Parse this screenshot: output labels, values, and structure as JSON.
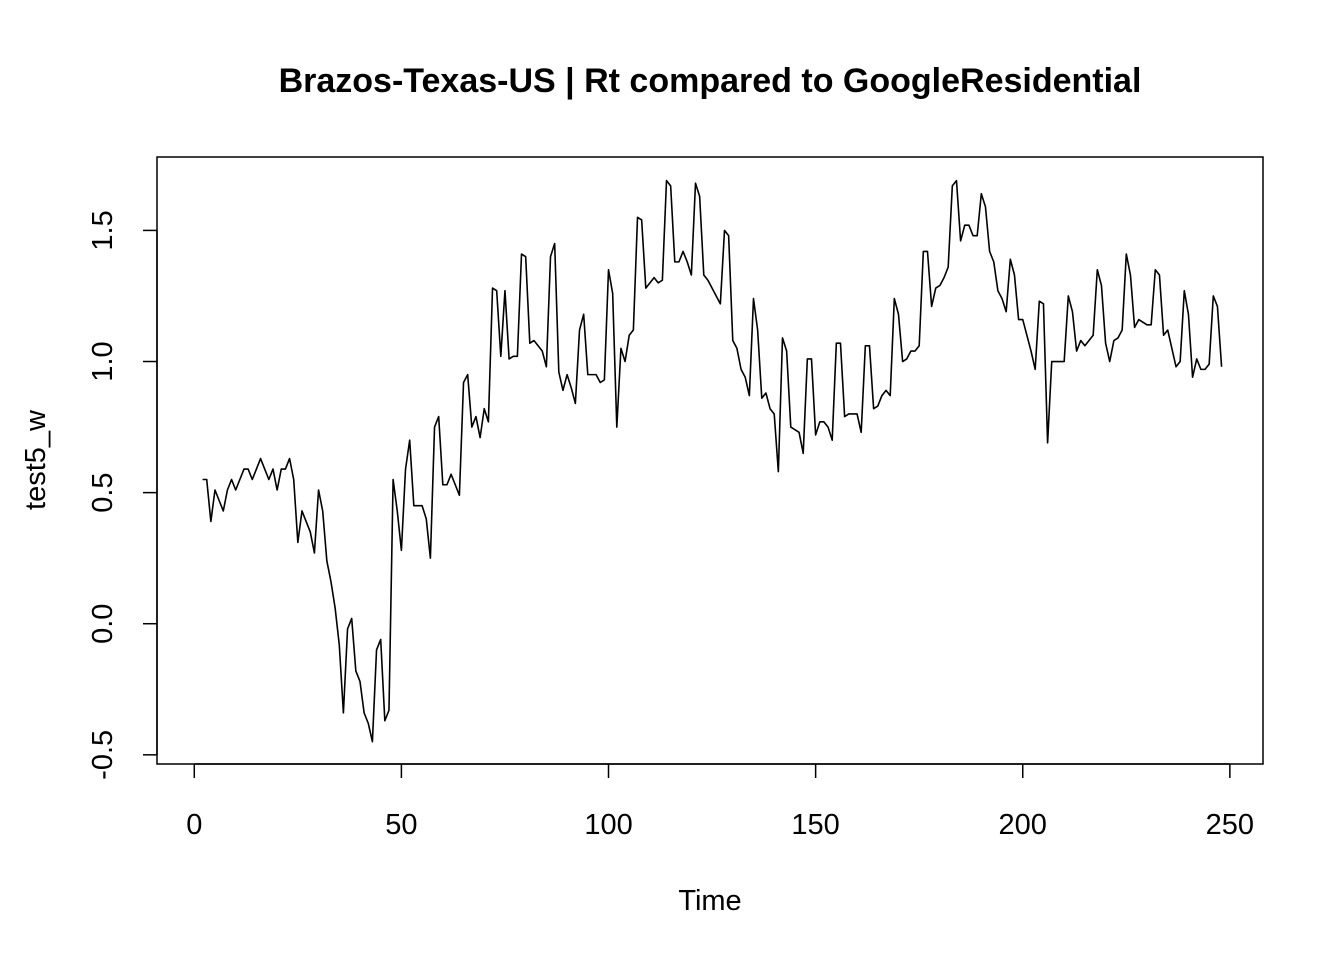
{
  "chart_data": {
    "type": "line",
    "title": "Brazos-Texas-US | Rt compared to GoogleResidential",
    "xlabel": "Time",
    "ylabel": "test5_w",
    "xlim": [
      -9,
      258
    ],
    "ylim": [
      -0.535,
      1.78
    ],
    "x_ticks": [
      0,
      50,
      100,
      150,
      200,
      250
    ],
    "y_ticks": [
      -0.5,
      0.0,
      0.5,
      1.0,
      1.5
    ],
    "x_tick_labels": [
      "0",
      "50",
      "100",
      "150",
      "200",
      "250"
    ],
    "y_tick_labels": [
      "-0.5",
      "0.0",
      "0.5",
      "1.0",
      "1.5"
    ],
    "grid": false,
    "legend": "none",
    "line_color": "#000000",
    "series": [
      {
        "x_start": 2,
        "values": [
          0.55,
          0.55,
          0.39,
          0.51,
          0.47,
          0.43,
          0.51,
          0.55,
          0.51,
          0.55,
          0.59,
          0.59,
          0.55,
          0.59,
          0.63,
          0.59,
          0.55,
          0.59,
          0.51,
          0.59,
          0.59,
          0.63,
          0.55,
          0.31,
          0.43,
          0.39,
          0.35,
          0.27,
          0.51,
          0.43,
          0.24,
          0.16,
          0.06,
          -0.08,
          -0.34,
          -0.02,
          0.02,
          -0.18,
          -0.22,
          -0.34,
          -0.38,
          -0.45,
          -0.1,
          -0.06,
          -0.37,
          -0.33,
          0.55,
          0.43,
          0.28,
          0.59,
          0.7,
          0.45,
          0.45,
          0.45,
          0.4,
          0.25,
          0.75,
          0.79,
          0.53,
          0.53,
          0.57,
          0.53,
          0.49,
          0.92,
          0.95,
          0.75,
          0.79,
          0.71,
          0.82,
          0.77,
          1.28,
          1.27,
          1.02,
          1.27,
          1.01,
          1.02,
          1.02,
          1.41,
          1.4,
          1.07,
          1.08,
          1.06,
          1.04,
          0.98,
          1.4,
          1.45,
          0.96,
          0.89,
          0.95,
          0.9,
          0.84,
          1.12,
          1.18,
          0.95,
          0.95,
          0.95,
          0.92,
          0.93,
          1.35,
          1.26,
          0.75,
          1.05,
          1.0,
          1.1,
          1.12,
          1.55,
          1.54,
          1.28,
          1.3,
          1.32,
          1.3,
          1.31,
          1.69,
          1.67,
          1.38,
          1.38,
          1.42,
          1.38,
          1.33,
          1.68,
          1.63,
          1.33,
          1.31,
          1.28,
          1.25,
          1.22,
          1.5,
          1.48,
          1.08,
          1.05,
          0.97,
          0.94,
          0.87,
          1.24,
          1.12,
          0.86,
          0.88,
          0.82,
          0.8,
          0.58,
          1.09,
          1.04,
          0.75,
          0.74,
          0.73,
          0.65,
          1.01,
          1.01,
          0.72,
          0.77,
          0.77,
          0.75,
          0.7,
          1.07,
          1.07,
          0.79,
          0.8,
          0.8,
          0.8,
          0.73,
          1.06,
          1.06,
          0.82,
          0.83,
          0.87,
          0.89,
          0.87,
          1.24,
          1.18,
          1.0,
          1.01,
          1.04,
          1.04,
          1.06,
          1.42,
          1.42,
          1.21,
          1.28,
          1.29,
          1.32,
          1.36,
          1.67,
          1.69,
          1.46,
          1.52,
          1.52,
          1.48,
          1.48,
          1.64,
          1.59,
          1.42,
          1.38,
          1.27,
          1.24,
          1.19,
          1.39,
          1.33,
          1.16,
          1.16,
          1.1,
          1.04,
          0.97,
          1.23,
          1.22,
          0.69,
          1.0,
          1.0,
          1.0,
          1.0,
          1.25,
          1.19,
          1.04,
          1.08,
          1.06,
          1.08,
          1.1,
          1.35,
          1.29,
          1.07,
          1.0,
          1.08,
          1.09,
          1.12,
          1.41,
          1.33,
          1.13,
          1.16,
          1.15,
          1.14,
          1.14,
          1.35,
          1.33,
          1.1,
          1.12,
          1.05,
          0.98,
          1.0,
          1.27,
          1.18,
          0.94,
          1.01,
          0.97,
          0.97,
          0.99,
          1.25,
          1.21,
          0.98
        ]
      }
    ]
  }
}
